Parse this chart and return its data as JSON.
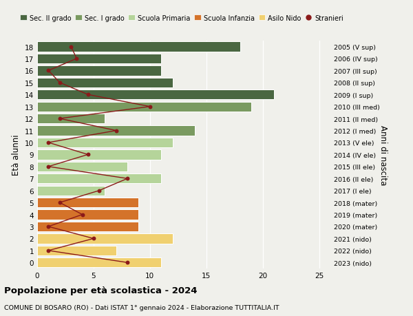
{
  "ages": [
    18,
    17,
    16,
    15,
    14,
    13,
    12,
    11,
    10,
    9,
    8,
    7,
    6,
    5,
    4,
    3,
    2,
    1,
    0
  ],
  "right_labels": [
    "2005 (V sup)",
    "2006 (IV sup)",
    "2007 (III sup)",
    "2008 (II sup)",
    "2009 (I sup)",
    "2010 (III med)",
    "2011 (II med)",
    "2012 (I med)",
    "2013 (V ele)",
    "2014 (IV ele)",
    "2015 (III ele)",
    "2016 (II ele)",
    "2017 (I ele)",
    "2018 (mater)",
    "2019 (mater)",
    "2020 (mater)",
    "2021 (nido)",
    "2022 (nido)",
    "2023 (nido)"
  ],
  "bar_values": [
    18,
    11,
    11,
    12,
    21,
    19,
    6,
    14,
    12,
    11,
    8,
    11,
    6,
    9,
    9,
    9,
    12,
    7,
    11
  ],
  "stranieri_values": [
    3,
    3.5,
    1,
    2,
    4.5,
    10,
    2,
    7,
    1,
    4.5,
    1,
    8,
    5.5,
    2,
    4,
    1,
    5,
    1,
    8
  ],
  "bar_colors": [
    "#4a6741",
    "#4a6741",
    "#4a6741",
    "#4a6741",
    "#4a6741",
    "#7a9a60",
    "#7a9a60",
    "#7a9a60",
    "#b5d49a",
    "#b5d49a",
    "#b5d49a",
    "#b5d49a",
    "#b5d49a",
    "#d4732a",
    "#d4732a",
    "#d4732a",
    "#f0d070",
    "#f0d070",
    "#f0d070"
  ],
  "legend_labels": [
    "Sec. II grado",
    "Sec. I grado",
    "Scuola Primaria",
    "Scuola Infanzia",
    "Asilo Nido",
    "Stranieri"
  ],
  "legend_colors": [
    "#4a6741",
    "#7a9a60",
    "#b5d49a",
    "#d4732a",
    "#f0d070",
    "#a01020"
  ],
  "stranieri_color": "#8b1a1a",
  "ylabel": "Età alunni",
  "right_ylabel": "Anni di nascita",
  "title": "Popolazione per età scolastica - 2024",
  "subtitle": "COMUNE DI BOSARO (RO) - Dati ISTAT 1° gennaio 2024 - Elaborazione TUTTITALIA.IT",
  "xlim": [
    0,
    26
  ],
  "ylim": [
    -0.5,
    18.5
  ],
  "xticks": [
    0,
    5,
    10,
    15,
    20,
    25
  ],
  "background_color": "#f0f0eb",
  "grid_color": "#ffffff"
}
